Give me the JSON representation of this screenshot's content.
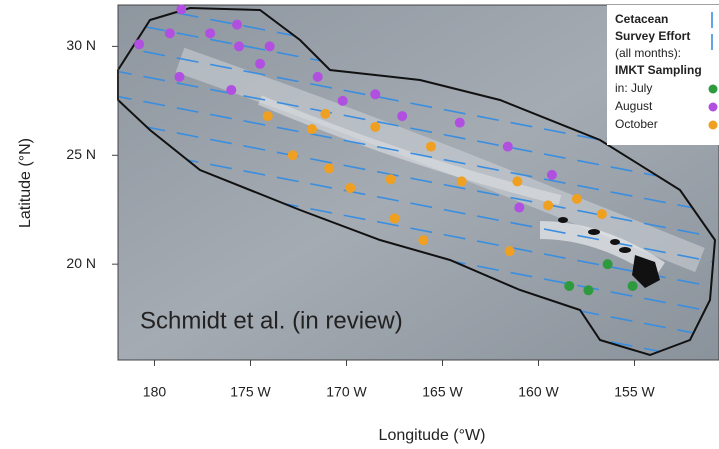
{
  "chart_data": {
    "type": "scatter",
    "xlabel": "Longitude (°W)",
    "ylabel": "Latitude (°N)",
    "annotation": "Schmidt et al. (in review)",
    "legend_title": [
      "Cetacean",
      "Survey Effort",
      "(all months):",
      "IMKT Sampling"
    ],
    "xlim": [
      181.9,
      150.6
    ],
    "ylim": [
      15.6,
      31.9
    ],
    "xticks": [
      {
        "value": 180,
        "label": "180"
      },
      {
        "value": 175,
        "label": "175 W"
      },
      {
        "value": 170,
        "label": "170 W"
      },
      {
        "value": 165,
        "label": "165 W"
      },
      {
        "value": 160,
        "label": "160 W"
      },
      {
        "value": 155,
        "label": "155 W"
      }
    ],
    "yticks": [
      {
        "value": 30,
        "label": "30 N"
      },
      {
        "value": 25,
        "label": "25 N"
      },
      {
        "value": 20,
        "label": "20 N"
      }
    ],
    "series": [
      {
        "name": "in: July",
        "color": "#2e9a3e",
        "x": [
          156.4,
          158.4,
          157.4,
          155.1
        ],
        "y": [
          20.0,
          19.0,
          18.8,
          19.0
        ]
      },
      {
        "name": "August",
        "color": "#b04fe0",
        "x": [
          178.6,
          179.2,
          180.8,
          177.1,
          175.7,
          175.6,
          174.0,
          174.5,
          178.7,
          176.0,
          171.5,
          170.2,
          168.5,
          167.1,
          164.1,
          161.6,
          159.3,
          161.0
        ],
        "y": [
          31.7,
          30.6,
          30.1,
          30.6,
          31.0,
          30.0,
          30.0,
          29.2,
          28.6,
          28.0,
          28.6,
          27.5,
          27.8,
          26.8,
          26.5,
          25.4,
          24.1,
          22.6
        ]
      },
      {
        "name": "October",
        "color": "#f0a020",
        "x": [
          174.1,
          171.8,
          171.1,
          168.5,
          172.8,
          170.9,
          169.8,
          167.7,
          165.6,
          164.0,
          167.5,
          166.0,
          161.5,
          161.1,
          159.5,
          158.0,
          156.7
        ],
        "y": [
          26.8,
          26.2,
          26.9,
          26.3,
          25.0,
          24.4,
          23.5,
          23.9,
          25.4,
          23.8,
          22.1,
          21.1,
          20.6,
          23.8,
          22.7,
          23.0,
          22.3
        ]
      }
    ]
  }
}
